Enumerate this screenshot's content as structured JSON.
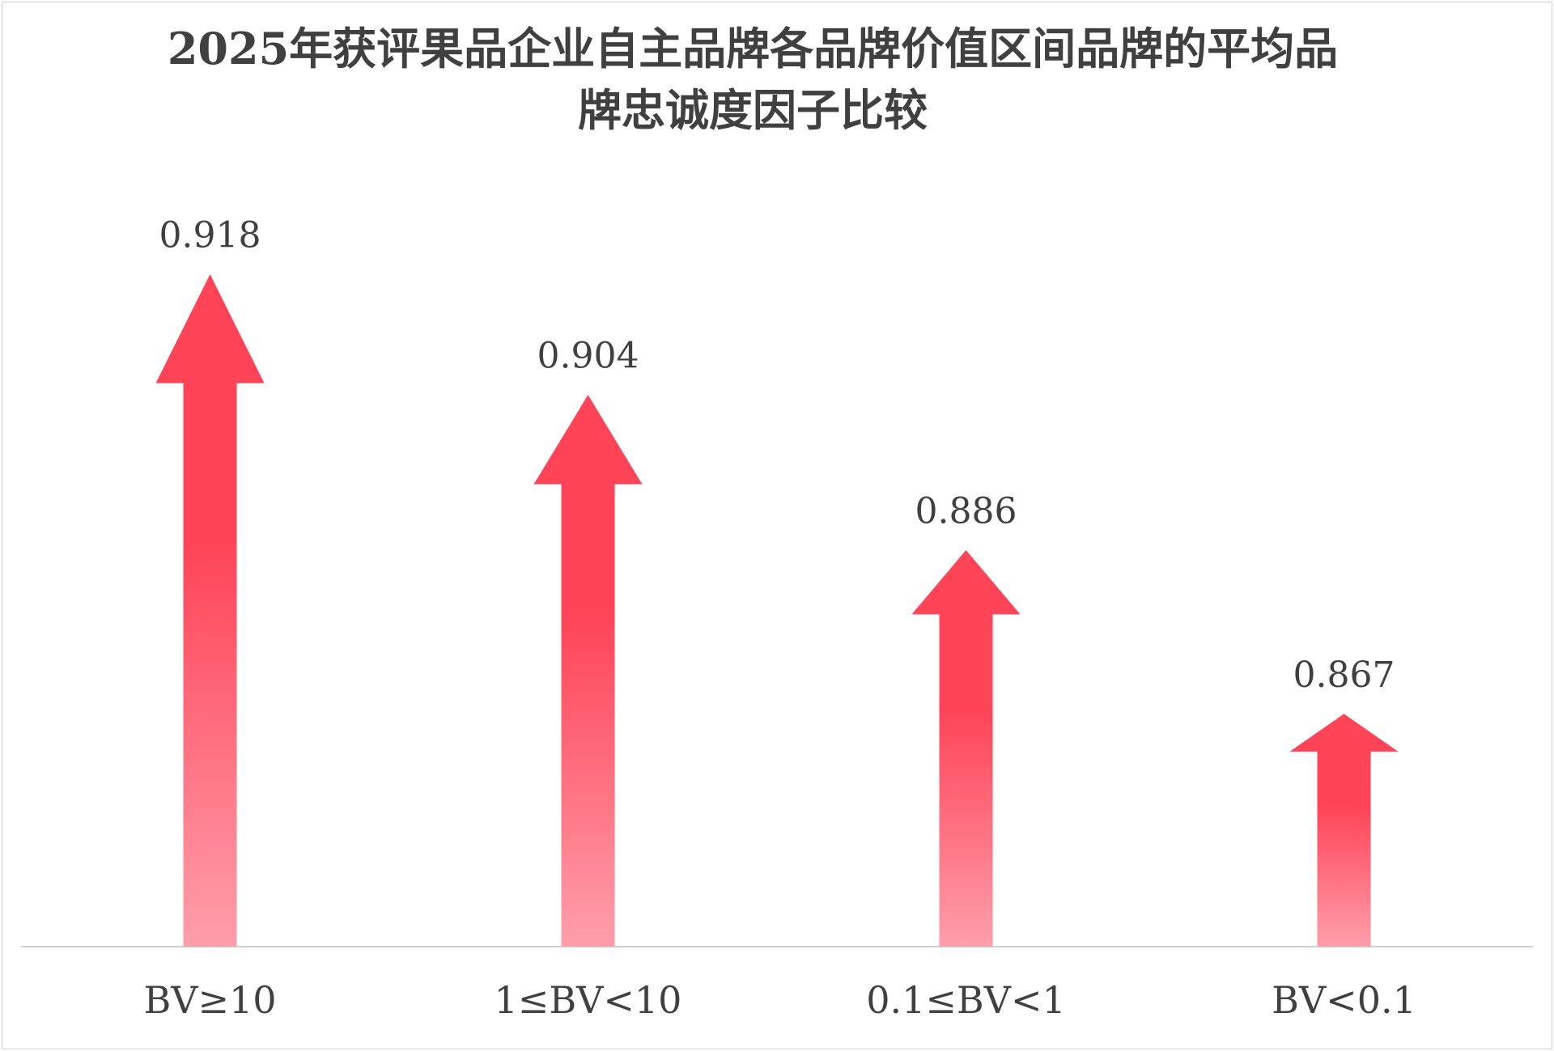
{
  "chart_data": {
    "type": "arrow-bar",
    "title": "2025年获评果品企业自主品牌各品牌价值区间品牌的平均品牌忠诚度因子比较",
    "categories": [
      "BV≥10",
      "1≤BV<10",
      "0.1≤BV<1",
      "BV<0.1"
    ],
    "values": [
      0.918,
      0.904,
      0.886,
      0.867
    ],
    "color": "#ff4458",
    "ylim": [
      0.84,
      0.93
    ]
  }
}
